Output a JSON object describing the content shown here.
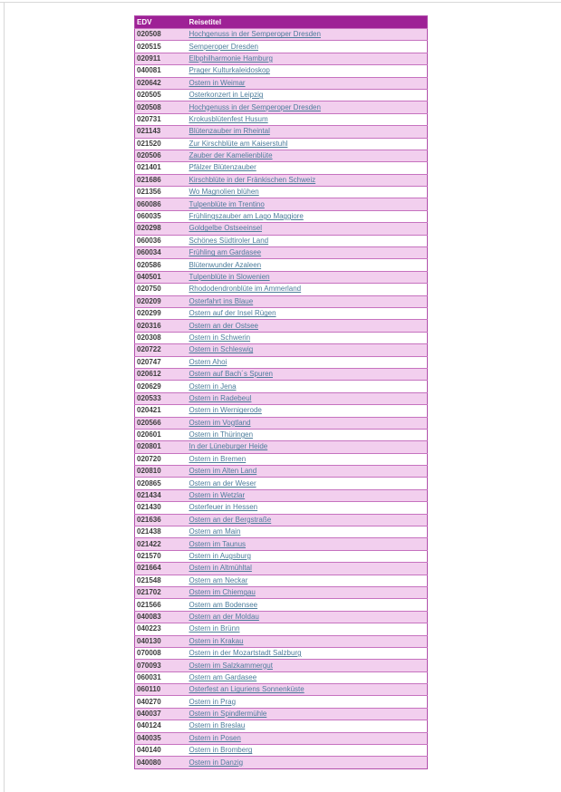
{
  "page": {
    "background": "#ffffff",
    "frame_border_color": "#d8d8d8"
  },
  "table": {
    "columns": [
      {
        "key": "edv",
        "label": "EDV"
      },
      {
        "key": "title",
        "label": "Reisetitel"
      }
    ],
    "colors": {
      "header_bg": "#9e2196",
      "header_text": "#ffffff",
      "row_alt_bg": "#f2cfee",
      "row_bg": "#ffffff",
      "inner_border": "#c672bf",
      "outer_border": "#b14fab",
      "edv_text": "#3c3c3c",
      "link_text": "#4c7c9b"
    },
    "rows": [
      {
        "edv": "020508",
        "title": "Hochgenuss in der Semperoper Dresden"
      },
      {
        "edv": "020515",
        "title": "Semperoper Dresden"
      },
      {
        "edv": "020911",
        "title": "Elbphilharmonie Hamburg"
      },
      {
        "edv": "040081",
        "title": "Prager Kulturkaleidoskop"
      },
      {
        "edv": "020642",
        "title": "Ostern in Weimar"
      },
      {
        "edv": "020505",
        "title": "Osterkonzert in Leipzig"
      },
      {
        "edv": "020508",
        "title": "Hochgenuss in der Semperoper Dresden"
      },
      {
        "edv": "020731",
        "title": "Krokusblütenfest Husum"
      },
      {
        "edv": "021143",
        "title": "Blütenzauber im Rheintal"
      },
      {
        "edv": "021520",
        "title": "Zur Kirschblüte am Kaiserstuhl"
      },
      {
        "edv": "020506",
        "title": "Zauber der Kamelienblüte"
      },
      {
        "edv": "021401",
        "title": "Pfälzer Blütenzauber"
      },
      {
        "edv": "021686",
        "title": "Kirschblüte in der Fränkischen Schweiz"
      },
      {
        "edv": "021356",
        "title": "Wo Magnolien blühen"
      },
      {
        "edv": "060086",
        "title": "Tulpenblüte im Trentino"
      },
      {
        "edv": "060035",
        "title": "Frühlingszauber am Lago Maggiore"
      },
      {
        "edv": "020298",
        "title": "Goldgelbe Ostseeinsel"
      },
      {
        "edv": "060036",
        "title": "Schönes Südtiroler Land"
      },
      {
        "edv": "060034",
        "title": "Frühling am Gardasee"
      },
      {
        "edv": "020586",
        "title": "Blütenwunder Azaleen"
      },
      {
        "edv": "040501",
        "title": "Tulpenblüte in Slowenien"
      },
      {
        "edv": "020750",
        "title": "Rhododendronblüte im Ammerland"
      },
      {
        "edv": "020209",
        "title": "Osterfahrt ins Blaue"
      },
      {
        "edv": "020299",
        "title": "Ostern auf der Insel Rügen"
      },
      {
        "edv": "020316",
        "title": "Ostern an der Ostsee"
      },
      {
        "edv": "020308",
        "title": "Ostern in Schwerin"
      },
      {
        "edv": "020722",
        "title": "Ostern in Schleswig"
      },
      {
        "edv": "020747",
        "title": "Ostern Ahoi"
      },
      {
        "edv": "020612",
        "title": "Ostern auf Bach´s Spuren"
      },
      {
        "edv": "020629",
        "title": "Ostern in Jena"
      },
      {
        "edv": "020533",
        "title": "Ostern in Radebeul"
      },
      {
        "edv": "020421",
        "title": "Ostern in Wernigerode"
      },
      {
        "edv": "020566",
        "title": "Ostern im Vogtland"
      },
      {
        "edv": "020601",
        "title": "Ostern in Thüringen"
      },
      {
        "edv": "020801",
        "title": "In der Lüneburger Heide"
      },
      {
        "edv": "020720",
        "title": "Ostern in Bremen"
      },
      {
        "edv": "020810",
        "title": "Ostern im Alten Land"
      },
      {
        "edv": "020865",
        "title": "Ostern an der Weser"
      },
      {
        "edv": "021434",
        "title": "Ostern in Wetzlar"
      },
      {
        "edv": "021430",
        "title": "Osterfeuer in Hessen"
      },
      {
        "edv": "021636",
        "title": "Ostern an der Bergstraße"
      },
      {
        "edv": "021438",
        "title": "Ostern am Main"
      },
      {
        "edv": "021422",
        "title": "Ostern im Taunus"
      },
      {
        "edv": "021570",
        "title": "Ostern in Augsburg"
      },
      {
        "edv": "021664",
        "title": "Ostern in Altmühltal"
      },
      {
        "edv": "021548",
        "title": "Ostern am Neckar"
      },
      {
        "edv": "021702",
        "title": "Ostern im Chiemgau"
      },
      {
        "edv": "021566",
        "title": "Ostern am Bodensee"
      },
      {
        "edv": "040083",
        "title": "Ostern an der Moldau"
      },
      {
        "edv": "040223",
        "title": "Ostern in Brünn"
      },
      {
        "edv": "040130",
        "title": "Ostern in Krakau"
      },
      {
        "edv": "070008",
        "title": "Ostern in der Mozartstadt Salzburg"
      },
      {
        "edv": "070093",
        "title": "Ostern im Salzkammergut"
      },
      {
        "edv": "060031",
        "title": "Ostern am Gardasee"
      },
      {
        "edv": "060110",
        "title": "Osterfest an Liguriens Sonnenküste"
      },
      {
        "edv": "040270",
        "title": "Ostern in Prag"
      },
      {
        "edv": "040037",
        "title": "Ostern in Spindlermühle"
      },
      {
        "edv": "040124",
        "title": "Ostern in Breslau"
      },
      {
        "edv": "040035",
        "title": "Ostern in Posen"
      },
      {
        "edv": "040140",
        "title": "Ostern in Bromberg"
      },
      {
        "edv": "040080",
        "title": "Ostern in Danzig"
      }
    ]
  }
}
